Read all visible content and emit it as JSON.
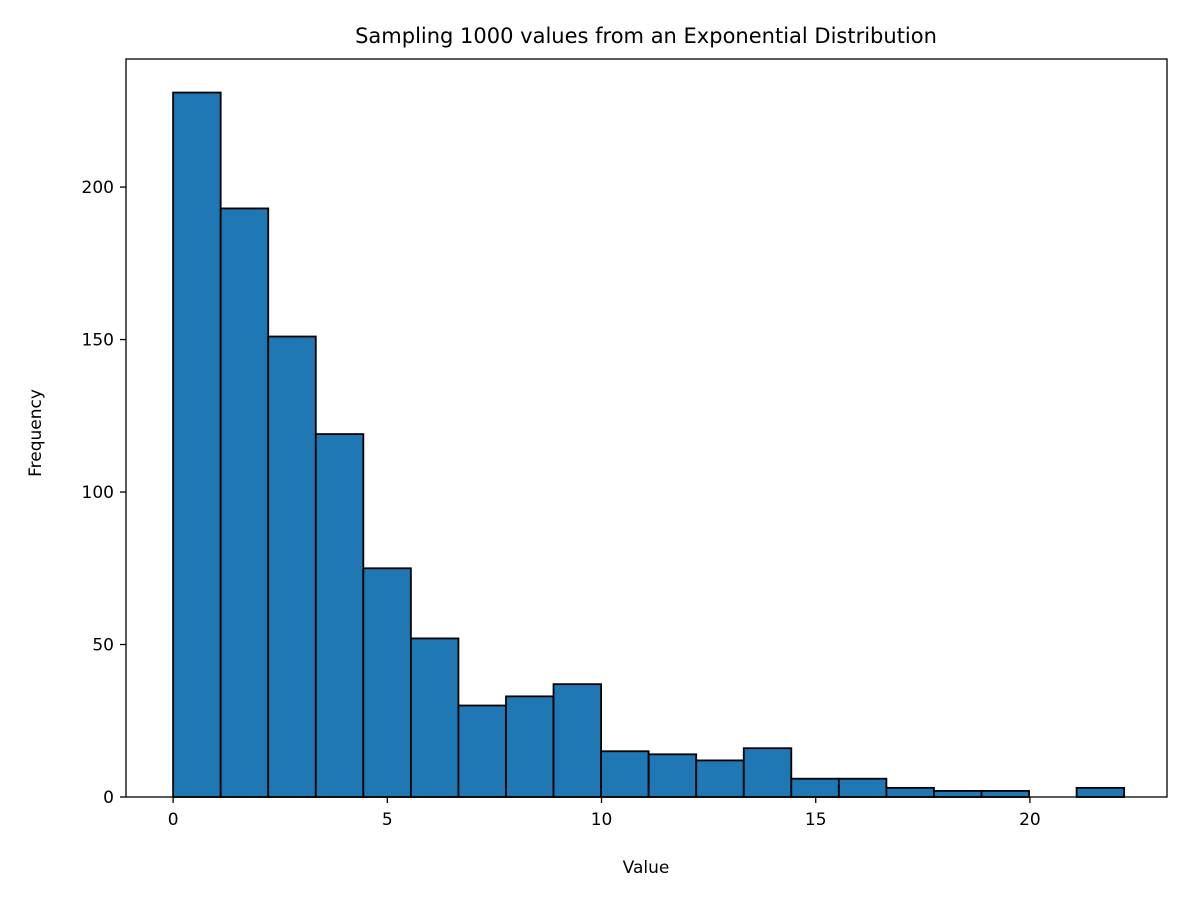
{
  "chart_data": {
    "type": "bar",
    "title": "Sampling 1000 values from an Exponential Distribution",
    "xlabel": "Value",
    "ylabel": "Frequency",
    "xlim": [
      -1.1,
      23.2
    ],
    "ylim": [
      0,
      242
    ],
    "xticks": [
      0,
      5,
      10,
      15,
      20
    ],
    "yticks": [
      0,
      50,
      100,
      150,
      200
    ],
    "bin_start": 0.0,
    "bin_width": 1.11,
    "values": [
      231,
      193,
      151,
      119,
      75,
      52,
      30,
      33,
      37,
      15,
      14,
      12,
      16,
      6,
      6,
      3,
      2,
      2,
      0,
      3
    ],
    "bar_color": "#1f77b4",
    "edge_color": "#000000",
    "grid": false
  }
}
